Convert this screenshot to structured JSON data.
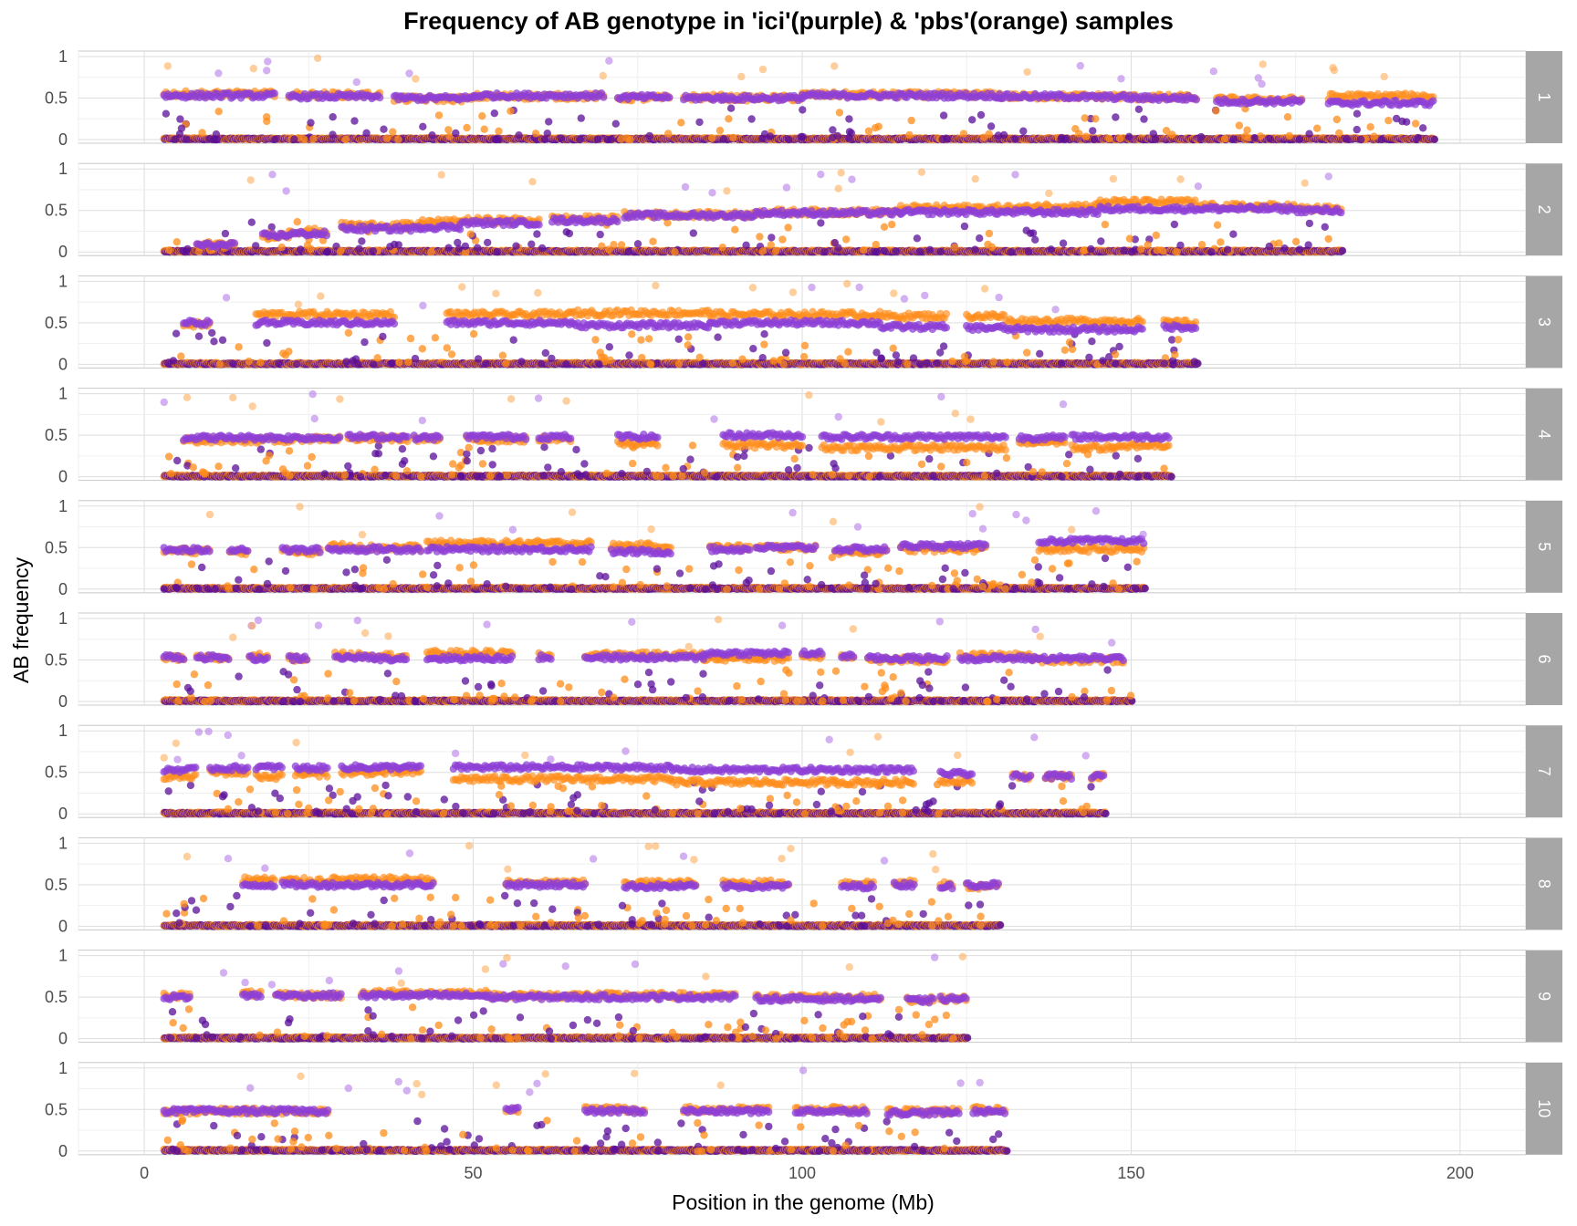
{
  "chart_data": {
    "type": "scatter",
    "title": "Frequency of AB genotype in 'ici'(purple) & 'pbs'(orange) samples",
    "xlabel": "Position in the genome (Mb)",
    "ylabel": "AB frequency",
    "xlim": [
      -10,
      210
    ],
    "ylim": [
      0,
      1
    ],
    "x_ticks": [
      0,
      50,
      100,
      150,
      200
    ],
    "y_ticks": [
      0,
      0.5,
      1
    ],
    "y_tick_labels": [
      "0",
      "0.5",
      "1"
    ],
    "grid": true,
    "facet_strip_position": "right",
    "legend": "none",
    "series": [
      {
        "color": "#FF8C1A"
      },
      {
        "color": "#8E3FD6"
      }
    ],
    "baseline_color": "#5A0E9A",
    "panels": [
      {
        "label": "1",
        "x_start": 3,
        "x_end": 196,
        "ici": [
          [
            3,
            20,
            0.53
          ],
          [
            22,
            36,
            0.52
          ],
          [
            38,
            50,
            0.5
          ],
          [
            50,
            70,
            0.53
          ],
          [
            72,
            80,
            0.51
          ],
          [
            82,
            88,
            0.5
          ],
          [
            88,
            100,
            0.5
          ],
          [
            100,
            130,
            0.53
          ],
          [
            130,
            142,
            0.52
          ],
          [
            142,
            150,
            0.51
          ],
          [
            150,
            160,
            0.5
          ],
          [
            163,
            176,
            0.46
          ],
          [
            180,
            196,
            0.44
          ]
        ],
        "pbs": [
          [
            3,
            20,
            0.55
          ],
          [
            22,
            36,
            0.54
          ],
          [
            38,
            50,
            0.49
          ],
          [
            50,
            70,
            0.52
          ],
          [
            72,
            80,
            0.5
          ],
          [
            82,
            88,
            0.51
          ],
          [
            88,
            100,
            0.5
          ],
          [
            100,
            130,
            0.54
          ],
          [
            130,
            142,
            0.52
          ],
          [
            142,
            150,
            0.52
          ],
          [
            150,
            160,
            0.51
          ],
          [
            163,
            176,
            0.48
          ],
          [
            180,
            196,
            0.52
          ]
        ]
      },
      {
        "label": "2",
        "x_start": 3,
        "x_end": 182,
        "ici": [
          [
            8,
            14,
            0.08
          ],
          [
            18,
            22,
            0.2
          ],
          [
            22,
            28,
            0.22
          ],
          [
            30,
            42,
            0.28
          ],
          [
            42,
            48,
            0.3
          ],
          [
            48,
            60,
            0.35
          ],
          [
            62,
            72,
            0.38
          ],
          [
            73,
            93,
            0.44
          ],
          [
            93,
            115,
            0.47
          ],
          [
            115,
            135,
            0.48
          ],
          [
            135,
            145,
            0.48
          ],
          [
            145,
            160,
            0.52
          ],
          [
            160,
            175,
            0.52
          ],
          [
            175,
            182,
            0.5
          ]
        ],
        "pbs": [
          [
            8,
            14,
            0.08
          ],
          [
            18,
            22,
            0.2
          ],
          [
            22,
            28,
            0.25
          ],
          [
            30,
            42,
            0.32
          ],
          [
            42,
            48,
            0.36
          ],
          [
            48,
            60,
            0.38
          ],
          [
            62,
            72,
            0.4
          ],
          [
            73,
            93,
            0.45
          ],
          [
            93,
            115,
            0.48
          ],
          [
            115,
            135,
            0.53
          ],
          [
            135,
            145,
            0.55
          ],
          [
            145,
            160,
            0.6
          ],
          [
            160,
            175,
            0.55
          ],
          [
            175,
            182,
            0.52
          ]
        ]
      },
      {
        "label": "3",
        "x_start": 3,
        "x_end": 160,
        "ici": [
          [
            6,
            10,
            0.5
          ],
          [
            17,
            38,
            0.5
          ],
          [
            46,
            65,
            0.5
          ],
          [
            65,
            86,
            0.47
          ],
          [
            86,
            112,
            0.5
          ],
          [
            112,
            122,
            0.45
          ],
          [
            125,
            131,
            0.44
          ],
          [
            131,
            152,
            0.42
          ],
          [
            155,
            160,
            0.45
          ]
        ],
        "pbs": [
          [
            6,
            10,
            0.48
          ],
          [
            17,
            38,
            0.6
          ],
          [
            46,
            65,
            0.6
          ],
          [
            65,
            86,
            0.62
          ],
          [
            86,
            112,
            0.6
          ],
          [
            112,
            122,
            0.58
          ],
          [
            125,
            131,
            0.58
          ],
          [
            131,
            152,
            0.52
          ],
          [
            155,
            160,
            0.5
          ]
        ]
      },
      {
        "label": "4",
        "x_start": 3,
        "x_end": 156,
        "ici": [
          [
            6,
            24,
            0.47
          ],
          [
            24,
            30,
            0.47
          ],
          [
            31,
            40,
            0.48
          ],
          [
            41,
            45,
            0.47
          ],
          [
            49,
            58,
            0.48
          ],
          [
            60,
            65,
            0.48
          ],
          [
            72,
            78,
            0.48
          ],
          [
            88,
            100,
            0.5
          ],
          [
            103,
            131,
            0.48
          ],
          [
            133,
            140,
            0.47
          ],
          [
            141,
            150,
            0.48
          ],
          [
            150,
            156,
            0.48
          ]
        ],
        "pbs": [
          [
            6,
            24,
            0.44
          ],
          [
            24,
            30,
            0.46
          ],
          [
            31,
            40,
            0.46
          ],
          [
            41,
            45,
            0.45
          ],
          [
            49,
            58,
            0.45
          ],
          [
            60,
            65,
            0.45
          ],
          [
            72,
            78,
            0.4
          ],
          [
            88,
            100,
            0.38
          ],
          [
            103,
            131,
            0.35
          ],
          [
            133,
            140,
            0.42
          ],
          [
            141,
            150,
            0.35
          ],
          [
            150,
            156,
            0.38
          ]
        ]
      },
      {
        "label": "5",
        "x_start": 3,
        "x_end": 152,
        "ici": [
          [
            3,
            10,
            0.47
          ],
          [
            13,
            16,
            0.48
          ],
          [
            21,
            27,
            0.47
          ],
          [
            28,
            33,
            0.48
          ],
          [
            33,
            42,
            0.48
          ],
          [
            43,
            68,
            0.48
          ],
          [
            71,
            80,
            0.45
          ],
          [
            86,
            92,
            0.48
          ],
          [
            93,
            102,
            0.5
          ],
          [
            105,
            113,
            0.48
          ],
          [
            115,
            128,
            0.52
          ],
          [
            136,
            152,
            0.58
          ]
        ],
        "pbs": [
          [
            3,
            10,
            0.46
          ],
          [
            13,
            16,
            0.45
          ],
          [
            21,
            27,
            0.45
          ],
          [
            28,
            33,
            0.52
          ],
          [
            33,
            42,
            0.5
          ],
          [
            43,
            68,
            0.55
          ],
          [
            71,
            80,
            0.52
          ],
          [
            86,
            92,
            0.5
          ],
          [
            93,
            102,
            0.5
          ],
          [
            105,
            113,
            0.45
          ],
          [
            115,
            128,
            0.48
          ],
          [
            136,
            152,
            0.48
          ]
        ]
      },
      {
        "label": "6",
        "x_start": 3,
        "x_end": 150,
        "ici": [
          [
            3,
            6,
            0.53
          ],
          [
            8,
            13,
            0.53
          ],
          [
            16,
            19,
            0.52
          ],
          [
            22,
            25,
            0.52
          ],
          [
            29,
            35,
            0.53
          ],
          [
            35,
            40,
            0.52
          ],
          [
            43,
            56,
            0.52
          ],
          [
            60,
            62,
            0.53
          ],
          [
            67,
            85,
            0.53
          ],
          [
            85,
            98,
            0.58
          ],
          [
            100,
            103,
            0.58
          ],
          [
            106,
            108,
            0.55
          ],
          [
            110,
            122,
            0.52
          ],
          [
            124,
            135,
            0.52
          ],
          [
            135,
            149,
            0.52
          ]
        ],
        "pbs": [
          [
            3,
            6,
            0.52
          ],
          [
            8,
            13,
            0.52
          ],
          [
            16,
            19,
            0.55
          ],
          [
            22,
            25,
            0.52
          ],
          [
            29,
            35,
            0.56
          ],
          [
            35,
            40,
            0.55
          ],
          [
            43,
            56,
            0.58
          ],
          [
            60,
            62,
            0.55
          ],
          [
            67,
            85,
            0.56
          ],
          [
            85,
            98,
            0.52
          ],
          [
            100,
            103,
            0.55
          ],
          [
            106,
            108,
            0.55
          ],
          [
            110,
            122,
            0.5
          ],
          [
            124,
            135,
            0.55
          ],
          [
            135,
            149,
            0.5
          ]
        ]
      },
      {
        "label": "7",
        "x_start": 3,
        "x_end": 146,
        "ici": [
          [
            3,
            8,
            0.53
          ],
          [
            10,
            16,
            0.55
          ],
          [
            17,
            21,
            0.56
          ],
          [
            23,
            28,
            0.55
          ],
          [
            30,
            33,
            0.56
          ],
          [
            33,
            42,
            0.56
          ],
          [
            47,
            80,
            0.56
          ],
          [
            80,
            117,
            0.53
          ],
          [
            121,
            126,
            0.48
          ],
          [
            132,
            135,
            0.45
          ],
          [
            137,
            141,
            0.45
          ],
          [
            144,
            146,
            0.45
          ]
        ],
        "pbs": [
          [
            3,
            8,
            0.45
          ],
          [
            10,
            16,
            0.5
          ],
          [
            17,
            21,
            0.45
          ],
          [
            23,
            28,
            0.48
          ],
          [
            30,
            33,
            0.5
          ],
          [
            33,
            42,
            0.5
          ],
          [
            47,
            80,
            0.42
          ],
          [
            80,
            117,
            0.38
          ],
          [
            121,
            126,
            0.4
          ],
          [
            132,
            135,
            0.45
          ],
          [
            137,
            141,
            0.45
          ],
          [
            144,
            146,
            0.45
          ]
        ]
      },
      {
        "label": "8",
        "x_start": 3,
        "x_end": 130,
        "ici": [
          [
            15,
            20,
            0.5
          ],
          [
            21,
            28,
            0.5
          ],
          [
            28,
            44,
            0.5
          ],
          [
            55,
            67,
            0.5
          ],
          [
            73,
            84,
            0.48
          ],
          [
            88,
            98,
            0.48
          ],
          [
            106,
            111,
            0.48
          ],
          [
            114,
            117,
            0.5
          ],
          [
            121,
            123,
            0.48
          ],
          [
            125,
            130,
            0.5
          ]
        ],
        "pbs": [
          [
            15,
            20,
            0.56
          ],
          [
            21,
            28,
            0.55
          ],
          [
            28,
            44,
            0.56
          ],
          [
            55,
            67,
            0.52
          ],
          [
            73,
            84,
            0.52
          ],
          [
            88,
            98,
            0.52
          ],
          [
            106,
            111,
            0.52
          ],
          [
            114,
            117,
            0.52
          ],
          [
            121,
            123,
            0.5
          ],
          [
            125,
            130,
            0.48
          ]
        ]
      },
      {
        "label": "9",
        "x_start": 3,
        "x_end": 125,
        "ici": [
          [
            3,
            7,
            0.5
          ],
          [
            15,
            18,
            0.52
          ],
          [
            20,
            30,
            0.52
          ],
          [
            33,
            52,
            0.52
          ],
          [
            52,
            90,
            0.5
          ],
          [
            93,
            112,
            0.48
          ],
          [
            116,
            120,
            0.46
          ],
          [
            121,
            125,
            0.48
          ]
        ],
        "pbs": [
          [
            3,
            7,
            0.52
          ],
          [
            15,
            18,
            0.54
          ],
          [
            20,
            30,
            0.52
          ],
          [
            33,
            52,
            0.55
          ],
          [
            52,
            90,
            0.52
          ],
          [
            93,
            112,
            0.5
          ],
          [
            116,
            120,
            0.47
          ],
          [
            121,
            125,
            0.48
          ]
        ]
      },
      {
        "label": "10",
        "x_start": 3,
        "x_end": 131,
        "ici": [
          [
            3,
            28,
            0.48
          ],
          [
            55,
            57,
            0.5
          ],
          [
            67,
            76,
            0.48
          ],
          [
            82,
            95,
            0.48
          ],
          [
            99,
            110,
            0.48
          ],
          [
            113,
            124,
            0.46
          ],
          [
            126,
            131,
            0.48
          ]
        ],
        "pbs": [
          [
            3,
            28,
            0.48
          ],
          [
            55,
            57,
            0.5
          ],
          [
            67,
            76,
            0.5
          ],
          [
            82,
            95,
            0.5
          ],
          [
            99,
            110,
            0.5
          ],
          [
            113,
            124,
            0.48
          ],
          [
            126,
            131,
            0.5
          ]
        ]
      }
    ]
  }
}
